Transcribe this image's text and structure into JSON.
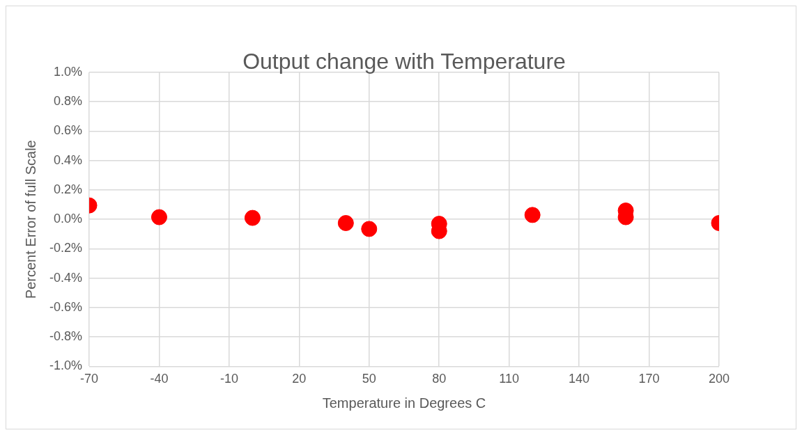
{
  "chart_data": {
    "type": "scatter",
    "title": "Output change with Temperature",
    "xlabel": "Temperature in Degrees C",
    "ylabel": "Percent Error of full Scale",
    "x": [
      -70,
      -40,
      0,
      40,
      50,
      80,
      80,
      120,
      160,
      160,
      200
    ],
    "series": [
      {
        "color": "#ff0000",
        "values": [
          0.095,
          0.015,
          0.01,
          -0.025,
          -0.065,
          -0.03,
          -0.08,
          0.03,
          0.06,
          0.015,
          -0.025
        ]
      }
    ],
    "xlim": [
      -70,
      200
    ],
    "xticks": [
      -70,
      -40,
      -10,
      20,
      50,
      80,
      110,
      140,
      170,
      200
    ],
    "ylim": [
      -1,
      1
    ],
    "yticks": [
      {
        "value": -1,
        "label": "-1.0%"
      },
      {
        "value": -0.8,
        "label": "-0.8%"
      },
      {
        "value": -0.6,
        "label": "-0.6%"
      },
      {
        "value": -0.4,
        "label": "-0.4%"
      },
      {
        "value": -0.2,
        "label": "-0.2%"
      },
      {
        "value": 0,
        "label": "0.0%"
      },
      {
        "value": 0.2,
        "label": "0.2%"
      },
      {
        "value": 0.4,
        "label": "0.4%"
      },
      {
        "value": 0.6,
        "label": "0.6%"
      },
      {
        "value": 0.8,
        "label": "0.8%"
      },
      {
        "value": 1,
        "label": "1.0%"
      }
    ],
    "grid": true,
    "legend": false,
    "marker": "circle"
  }
}
